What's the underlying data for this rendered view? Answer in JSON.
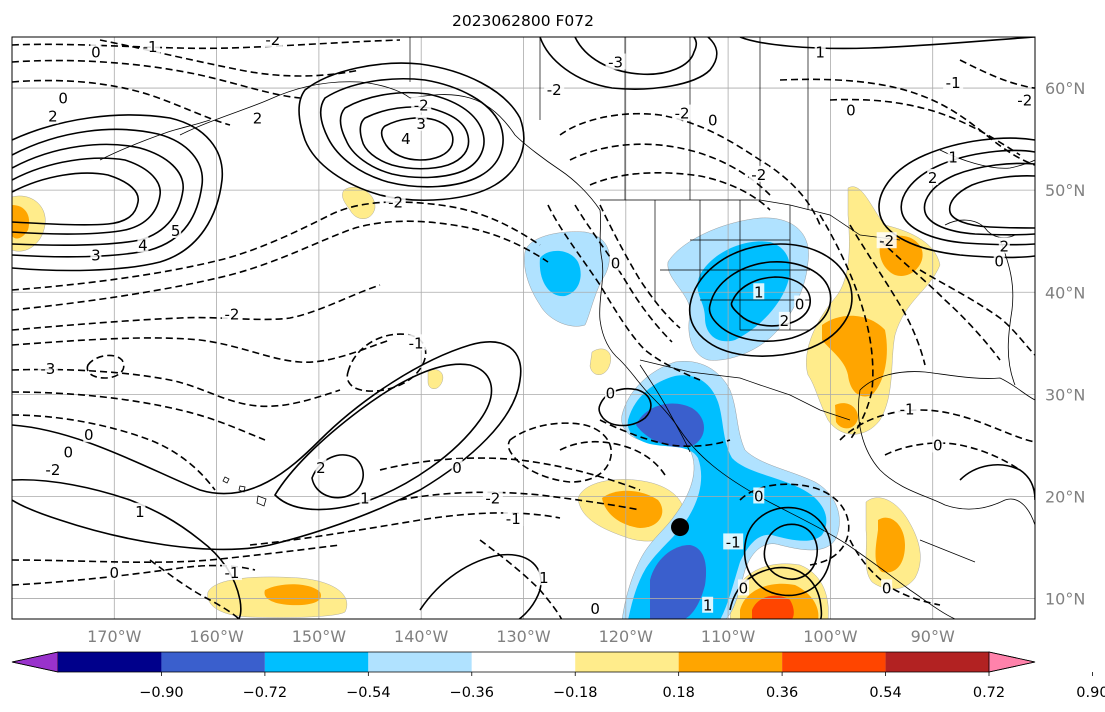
{
  "title": "2023062800 F072",
  "map": {
    "lon_ticks": [
      {
        "value": -170,
        "label": "170°W"
      },
      {
        "value": -160,
        "label": "160°W"
      },
      {
        "value": -150,
        "label": "150°W"
      },
      {
        "value": -140,
        "label": "140°W"
      },
      {
        "value": -130,
        "label": "130°W"
      },
      {
        "value": -120,
        "label": "120°W"
      },
      {
        "value": -110,
        "label": "110°W"
      },
      {
        "value": -100,
        "label": "100°W"
      },
      {
        "value": -90,
        "label": "90°W"
      }
    ],
    "lat_ticks": [
      {
        "value": 10,
        "label": "10°N"
      },
      {
        "value": 20,
        "label": "20°N"
      },
      {
        "value": 30,
        "label": "30°N"
      },
      {
        "value": 40,
        "label": "40°N"
      },
      {
        "value": 50,
        "label": "50°N"
      },
      {
        "value": 60,
        "label": "60°N"
      }
    ],
    "grid": true,
    "marker": {
      "lon": -114.7,
      "lat": 17.0,
      "color": "#000000"
    },
    "contour_labels": [
      {
        "text": "0",
        "lon": -171.8,
        "lat": 63.5
      },
      {
        "text": "-1",
        "lon": -166.5,
        "lat": 64.0
      },
      {
        "text": "-2",
        "lon": -154.5,
        "lat": 64.7
      },
      {
        "text": "0",
        "lon": -175.0,
        "lat": 59.0
      },
      {
        "text": "2",
        "lon": -176.0,
        "lat": 57.2
      },
      {
        "text": "2",
        "lon": -156.0,
        "lat": 57.0
      },
      {
        "text": "3",
        "lon": -140.0,
        "lat": 56.5
      },
      {
        "text": "4",
        "lon": -141.5,
        "lat": 55.0
      },
      {
        "text": "-3",
        "lon": -121.0,
        "lat": 62.5
      },
      {
        "text": "-2",
        "lon": -127.0,
        "lat": 59.8
      },
      {
        "text": "-2",
        "lon": -114.5,
        "lat": 57.5
      },
      {
        "text": "0",
        "lon": -111.5,
        "lat": 56.8
      },
      {
        "text": "1",
        "lon": -101.0,
        "lat": 63.5
      },
      {
        "text": "0",
        "lon": -98.0,
        "lat": 57.8
      },
      {
        "text": "-1",
        "lon": -88.0,
        "lat": 60.5
      },
      {
        "text": "-2",
        "lon": -81.0,
        "lat": 58.8
      },
      {
        "text": "-2",
        "lon": -107.0,
        "lat": 51.5
      },
      {
        "text": "-2",
        "lon": -142.5,
        "lat": 48.8
      },
      {
        "text": "5",
        "lon": -164.0,
        "lat": 46.0
      },
      {
        "text": "4",
        "lon": -167.2,
        "lat": 44.6
      },
      {
        "text": "3",
        "lon": -171.8,
        "lat": 43.6
      },
      {
        "text": "1",
        "lon": -88.0,
        "lat": 53.2
      },
      {
        "text": "2",
        "lon": -90.0,
        "lat": 51.2
      },
      {
        "text": "2",
        "lon": -83.0,
        "lat": 44.5
      },
      {
        "text": "0",
        "lon": -83.5,
        "lat": 43.0
      },
      {
        "text": "0",
        "lon": -121.0,
        "lat": 42.8
      },
      {
        "text": "1",
        "lon": -107.0,
        "lat": 40.0
      },
      {
        "text": "2",
        "lon": -104.5,
        "lat": 37.2
      },
      {
        "text": "0",
        "lon": -103.0,
        "lat": 38.8
      },
      {
        "text": "-2",
        "lon": -158.5,
        "lat": 37.8
      },
      {
        "text": "-3",
        "lon": -176.5,
        "lat": 32.5
      },
      {
        "text": "-1",
        "lon": -140.5,
        "lat": 35.0
      },
      {
        "text": "0",
        "lon": -121.5,
        "lat": 30.1
      },
      {
        "text": "0",
        "lon": -172.5,
        "lat": 26.0
      },
      {
        "text": "0",
        "lon": -174.5,
        "lat": 24.3
      },
      {
        "text": "-2",
        "lon": -176.0,
        "lat": 22.6
      },
      {
        "text": "2",
        "lon": -149.8,
        "lat": 22.8
      },
      {
        "text": "1",
        "lon": -145.5,
        "lat": 19.8
      },
      {
        "text": "0",
        "lon": -136.5,
        "lat": 22.8
      },
      {
        "text": "-2",
        "lon": -133.0,
        "lat": 19.8
      },
      {
        "text": "-1",
        "lon": -131.0,
        "lat": 17.8
      },
      {
        "text": "1",
        "lon": -167.5,
        "lat": 18.5
      },
      {
        "text": "-1",
        "lon": -92.5,
        "lat": 28.5
      },
      {
        "text": "0",
        "lon": -89.5,
        "lat": 25.0
      },
      {
        "text": "0",
        "lon": -107.0,
        "lat": 20.0
      },
      {
        "text": "-1",
        "lon": -109.5,
        "lat": 15.5
      },
      {
        "text": "0",
        "lon": -170.0,
        "lat": 12.5
      },
      {
        "text": "-1",
        "lon": -158.5,
        "lat": 12.5
      },
      {
        "text": "1",
        "lon": -128.0,
        "lat": 12.0
      },
      {
        "text": "0",
        "lon": -123.0,
        "lat": 9.0
      },
      {
        "text": "0",
        "lon": -108.5,
        "lat": 11.0
      },
      {
        "text": "1",
        "lon": -112.0,
        "lat": 9.3
      },
      {
        "text": "0",
        "lon": -94.5,
        "lat": 11.0
      },
      {
        "text": "-2",
        "lon": -94.5,
        "lat": 45.0
      },
      {
        "text": "-2",
        "lon": -140.0,
        "lat": 58.3
      }
    ]
  },
  "colorbar": {
    "boundaries": [
      -1.08,
      -0.9,
      -0.72,
      -0.54,
      -0.36,
      -0.18,
      0.18,
      0.36,
      0.54,
      0.72,
      0.9,
      1.08
    ],
    "colors": [
      "#9932cc",
      "#00008b",
      "#3a5fcd",
      "#00bfff",
      "#b0e2ff",
      "#ffffff",
      "#ffec8b",
      "#ffa500",
      "#ff4500",
      "#b22222",
      "#ff82ab"
    ],
    "tick_labels": [
      "−0.90",
      "−0.72",
      "−0.54",
      "−0.36",
      "−0.18",
      "0.18",
      "0.36",
      "0.54",
      "0.72",
      "0.90"
    ],
    "extend": "both"
  },
  "colors": {
    "frame": "#000000",
    "grid": "#aaaaaa",
    "tick_label": "#808080",
    "contour": "#000000"
  }
}
